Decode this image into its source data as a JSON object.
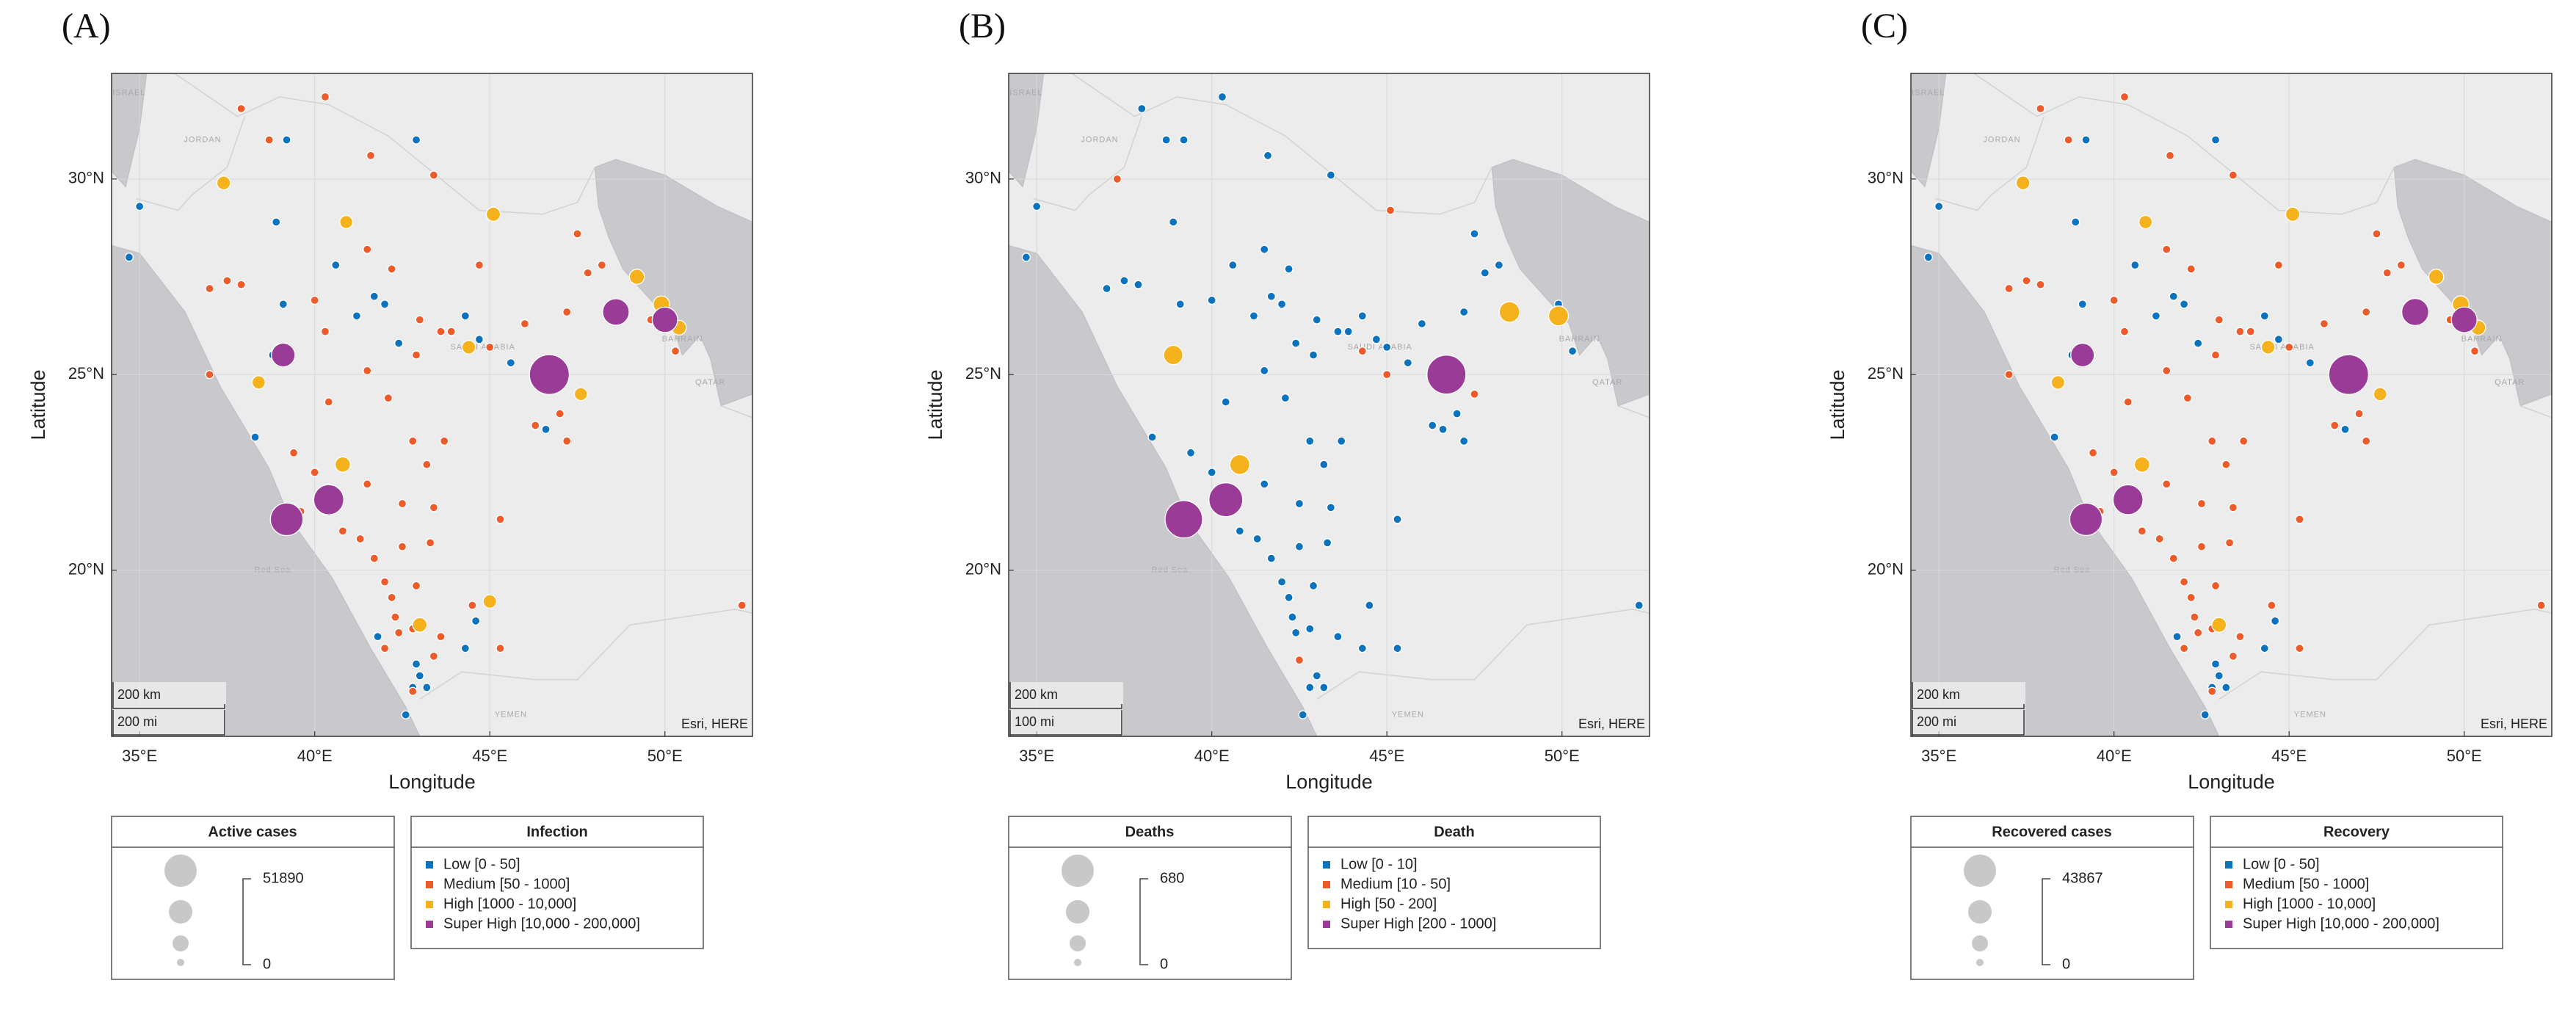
{
  "chart_data": [
    {
      "type": "scatter",
      "panel_label": "(A)",
      "xlabel": "Longitude",
      "ylabel": "Latitude",
      "xlim": [
        34.2,
        52.5
      ],
      "ylim": [
        15.75,
        32.7
      ],
      "xticks": [
        {
          "value": 35,
          "label": "35°E"
        },
        {
          "value": 40,
          "label": "40°E"
        },
        {
          "value": 45,
          "label": "45°E"
        },
        {
          "value": 50,
          "label": "50°E"
        }
      ],
      "yticks": [
        {
          "value": 20,
          "label": "20°N"
        },
        {
          "value": 25,
          "label": "25°N"
        },
        {
          "value": 30,
          "label": "30°N"
        }
      ],
      "grid": true,
      "map_labels": [
        "ISRAEL",
        "JORDAN",
        "SAUDI ARABIA",
        "BAHRAIN",
        "QATAR",
        "Red Sea",
        "YEMEN"
      ],
      "scale_bar": [
        "200 km",
        "200 mi"
      ],
      "attribution": "Esri, HERE",
      "size_legend": {
        "title": "Active cases",
        "max": 51890,
        "min": 0
      },
      "legend_title": "Infection",
      "series": [
        {
          "name": "Low [0 - 50]",
          "color": "#0b72bd",
          "x": [
            35.0,
            34.7,
            39.2,
            38.9,
            39.1,
            38.3,
            40.6,
            41.7,
            41.2,
            42.0,
            42.4,
            44.3,
            44.7,
            45.6,
            46.6,
            42.9,
            41.8,
            42.9,
            43.0,
            42.8,
            43.2,
            42.6,
            44.6,
            44.3,
            38.8
          ],
          "y": [
            29.3,
            28.0,
            31.0,
            28.9,
            26.8,
            23.4,
            27.8,
            27.0,
            26.5,
            26.8,
            25.8,
            26.5,
            25.9,
            25.3,
            23.6,
            31.0,
            18.3,
            17.6,
            17.3,
            17.0,
            17.0,
            16.3,
            18.7,
            18.0,
            25.5
          ]
        },
        {
          "name": "Medium [50 - 1000]",
          "color": "#ee5b2a",
          "x": [
            37.9,
            38.7,
            40.3,
            41.6,
            43.4,
            37.0,
            37.5,
            37.9,
            40.0,
            40.3,
            41.5,
            42.2,
            43.0,
            43.6,
            43.9,
            42.9,
            45.0,
            44.7,
            47.2,
            47.5,
            47.8,
            48.2,
            46.0,
            46.3,
            47.0,
            47.2,
            37.0,
            39.4,
            40.0,
            40.4,
            41.5,
            42.1,
            42.8,
            43.7,
            43.2,
            41.5,
            42.5,
            43.4,
            45.3,
            40.8,
            41.3,
            42.5,
            43.3,
            41.7,
            42.0,
            42.2,
            42.3,
            42.4,
            42.8,
            43.6,
            42.9,
            44.5,
            45.3,
            42.0,
            43.4,
            42.8,
            50.3,
            49.6,
            52.2,
            39.6
          ],
          "y": [
            31.8,
            31.0,
            32.1,
            30.6,
            30.1,
            27.2,
            27.4,
            27.3,
            26.9,
            26.1,
            28.2,
            27.7,
            26.4,
            26.1,
            26.1,
            25.5,
            25.7,
            27.8,
            26.6,
            28.6,
            27.6,
            27.8,
            26.3,
            23.7,
            24.0,
            23.3,
            25.0,
            23.0,
            22.5,
            24.3,
            25.1,
            24.4,
            23.3,
            23.3,
            22.7,
            22.2,
            21.7,
            21.6,
            21.3,
            21.0,
            20.8,
            20.6,
            20.7,
            20.3,
            19.7,
            19.3,
            18.8,
            18.4,
            18.5,
            18.3,
            19.6,
            19.1,
            18.0,
            18.0,
            17.8,
            16.9,
            25.6,
            26.4,
            19.1,
            21.5
          ]
        },
        {
          "name": "High [1000 - 10,000]",
          "color": "#f5b21c",
          "x": [
            37.4,
            40.9,
            45.1,
            38.4,
            40.8,
            43.0,
            45.0,
            46.5,
            47.6,
            49.2,
            49.9,
            50.4,
            44.4
          ],
          "y": [
            29.9,
            28.9,
            29.1,
            24.8,
            22.7,
            18.6,
            19.2,
            25.0,
            24.5,
            27.5,
            26.8,
            26.2,
            25.7
          ],
          "sizes": [
            1500,
            1200,
            1800,
            1300,
            2600,
            2000,
            1400,
            1600,
            1200,
            2400,
            3500,
            2200,
            1500
          ]
        },
        {
          "name": "Super High [10,000 - 200,000]",
          "color": "#9a3b98",
          "x": [
            39.1,
            40.4,
            39.2,
            46.7,
            48.6,
            50.0
          ],
          "y": [
            25.5,
            21.8,
            21.3,
            25.0,
            26.6,
            26.4
          ],
          "sizes": [
            12000,
            24000,
            30000,
            50000,
            17000,
            15000
          ]
        }
      ]
    },
    {
      "type": "scatter",
      "panel_label": "(B)",
      "xlabel": "Longitude",
      "ylabel": "Latitude",
      "xlim": [
        34.2,
        52.5
      ],
      "ylim": [
        15.75,
        32.7
      ],
      "xticks": [
        {
          "value": 35,
          "label": "35°E"
        },
        {
          "value": 40,
          "label": "40°E"
        },
        {
          "value": 45,
          "label": "45°E"
        },
        {
          "value": 50,
          "label": "50°E"
        }
      ],
      "yticks": [
        {
          "value": 20,
          "label": "20°N"
        },
        {
          "value": 25,
          "label": "25°N"
        },
        {
          "value": 30,
          "label": "30°N"
        }
      ],
      "grid": true,
      "map_labels": [
        "ISRAEL",
        "JORDAN",
        "SAUDI ARABIA",
        "BAHRAIN",
        "QATAR",
        "Red Sea",
        "YEMEN"
      ],
      "scale_bar": [
        "200 km",
        "100 mi"
      ],
      "attribution": "Esri, HERE",
      "size_legend": {
        "title": "Deaths",
        "max": 680,
        "min": 0
      },
      "legend_title": "Death",
      "series": [
        {
          "name": "Low [0 - 10]",
          "color": "#0b72bd",
          "x": [
            35.0,
            34.7,
            38.0,
            38.7,
            39.2,
            40.3,
            41.6,
            43.4,
            39.1,
            38.9,
            37.0,
            37.5,
            37.9,
            40.0,
            40.6,
            41.7,
            41.2,
            42.0,
            42.4,
            41.5,
            42.2,
            43.0,
            43.6,
            43.9,
            42.9,
            44.3,
            44.7,
            45.0,
            45.6,
            46.0,
            46.6,
            47.2,
            47.5,
            47.8,
            48.2,
            46.3,
            47.0,
            47.2,
            38.3,
            39.4,
            40.0,
            40.4,
            41.5,
            42.1,
            42.8,
            43.7,
            43.2,
            41.5,
            42.5,
            43.4,
            45.3,
            40.8,
            41.3,
            42.5,
            43.3,
            41.7,
            42.0,
            42.2,
            42.3,
            42.4,
            42.8,
            43.6,
            42.9,
            44.5,
            45.3,
            43.0,
            42.8,
            43.2,
            42.6,
            44.3,
            49.9,
            50.3,
            52.2
          ],
          "y": [
            29.3,
            28.0,
            31.8,
            31.0,
            31.0,
            32.1,
            30.6,
            30.1,
            26.8,
            28.9,
            27.2,
            27.4,
            27.3,
            26.9,
            27.8,
            27.0,
            26.5,
            26.8,
            25.8,
            28.2,
            27.7,
            26.4,
            26.1,
            26.1,
            25.5,
            26.5,
            25.9,
            25.7,
            25.3,
            26.3,
            23.6,
            26.6,
            28.6,
            27.6,
            27.8,
            23.7,
            24.0,
            23.3,
            23.4,
            23.0,
            22.5,
            24.3,
            25.1,
            24.4,
            23.3,
            23.3,
            22.7,
            22.2,
            21.7,
            21.6,
            21.3,
            21.0,
            20.8,
            20.6,
            20.7,
            20.3,
            19.7,
            19.3,
            18.8,
            18.4,
            18.5,
            18.3,
            19.6,
            19.1,
            18.0,
            17.3,
            17.0,
            17.0,
            16.3,
            18.0,
            26.8,
            25.6,
            19.1
          ]
        },
        {
          "name": "Medium [10 - 50]",
          "color": "#ee5b2a",
          "x": [
            37.3,
            45.1,
            44.3,
            47.5,
            42.5,
            45.0
          ],
          "y": [
            30.0,
            29.2,
            25.6,
            24.5,
            17.7,
            25.0
          ]
        },
        {
          "name": "High [50 - 200]",
          "color": "#f5b21c",
          "x": [
            38.9,
            40.8,
            48.5,
            49.9
          ],
          "y": [
            25.5,
            22.7,
            26.6,
            26.5
          ],
          "sizes": [
            80,
            90,
            100,
            90
          ]
        },
        {
          "name": "Super High [200 - 1000]",
          "color": "#9a3b98",
          "x": [
            39.2,
            40.4,
            46.7
          ],
          "y": [
            21.3,
            21.8,
            25.0
          ],
          "sizes": [
            560,
            430,
            620
          ]
        }
      ]
    },
    {
      "type": "scatter",
      "panel_label": "(C)",
      "xlabel": "Longitude",
      "ylabel": "Latitude",
      "xlim": [
        34.2,
        52.5
      ],
      "ylim": [
        15.75,
        32.7
      ],
      "xticks": [
        {
          "value": 35,
          "label": "35°E"
        },
        {
          "value": 40,
          "label": "40°E"
        },
        {
          "value": 45,
          "label": "45°E"
        },
        {
          "value": 50,
          "label": "50°E"
        }
      ],
      "yticks": [
        {
          "value": 20,
          "label": "20°N"
        },
        {
          "value": 25,
          "label": "25°N"
        },
        {
          "value": 30,
          "label": "30°N"
        }
      ],
      "grid": true,
      "map_labels": [
        "ISRAEL",
        "JORDAN",
        "SAUDI ARABIA",
        "BAHRAIN",
        "QATAR",
        "Red Sea",
        "YEMEN"
      ],
      "scale_bar": [
        "200 km",
        "200 mi"
      ],
      "attribution": "Esri, HERE",
      "size_legend": {
        "title": "Recovered cases",
        "max": 43867,
        "min": 0
      },
      "legend_title": "Recovery",
      "series": [
        {
          "name": "Low [0 - 50]",
          "color": "#0b72bd",
          "x": [
            35.0,
            34.7,
            39.2,
            38.9,
            39.1,
            38.3,
            40.6,
            41.7,
            41.2,
            42.0,
            42.4,
            44.3,
            44.7,
            45.6,
            46.6,
            42.9,
            41.8,
            42.9,
            43.0,
            42.8,
            43.2,
            42.6,
            44.6,
            44.3,
            38.8
          ],
          "y": [
            29.3,
            28.0,
            31.0,
            28.9,
            26.8,
            23.4,
            27.8,
            27.0,
            26.5,
            26.8,
            25.8,
            26.5,
            25.9,
            25.3,
            23.6,
            31.0,
            18.3,
            17.6,
            17.3,
            17.0,
            17.0,
            16.3,
            18.7,
            18.0,
            25.5
          ]
        },
        {
          "name": "Medium [50 - 1000]",
          "color": "#ee5b2a",
          "x": [
            37.9,
            38.7,
            40.3,
            41.6,
            43.4,
            37.0,
            37.5,
            37.9,
            40.0,
            40.3,
            41.5,
            42.2,
            43.0,
            43.6,
            43.9,
            42.9,
            45.0,
            44.7,
            47.2,
            47.5,
            47.8,
            48.2,
            46.0,
            46.3,
            47.0,
            47.2,
            37.0,
            39.4,
            40.0,
            40.4,
            41.5,
            42.1,
            42.8,
            43.7,
            43.2,
            41.5,
            42.5,
            43.4,
            45.3,
            40.8,
            41.3,
            42.5,
            43.3,
            41.7,
            42.0,
            42.2,
            42.3,
            42.4,
            42.8,
            43.6,
            42.9,
            44.5,
            45.3,
            42.0,
            43.4,
            42.8,
            50.3,
            49.6,
            52.2,
            39.6
          ],
          "y": [
            31.8,
            31.0,
            32.1,
            30.6,
            30.1,
            27.2,
            27.4,
            27.3,
            26.9,
            26.1,
            28.2,
            27.7,
            26.4,
            26.1,
            26.1,
            25.5,
            25.7,
            27.8,
            26.6,
            28.6,
            27.6,
            27.8,
            26.3,
            23.7,
            24.0,
            23.3,
            25.0,
            23.0,
            22.5,
            24.3,
            25.1,
            24.4,
            23.3,
            23.3,
            22.7,
            22.2,
            21.7,
            21.6,
            21.3,
            21.0,
            20.8,
            20.6,
            20.7,
            20.3,
            19.7,
            19.3,
            18.8,
            18.4,
            18.5,
            18.3,
            19.6,
            19.1,
            18.0,
            18.0,
            17.8,
            16.9,
            25.6,
            26.4,
            19.1,
            21.5
          ]
        },
        {
          "name": "High [1000 - 10,000]",
          "color": "#f5b21c",
          "x": [
            37.4,
            40.9,
            45.1,
            38.4,
            40.8,
            43.0,
            46.5,
            47.6,
            49.2,
            49.9,
            50.4,
            44.4
          ],
          "y": [
            29.9,
            28.9,
            29.1,
            24.8,
            22.7,
            18.6,
            25.0,
            24.5,
            27.5,
            26.8,
            26.2,
            25.7
          ],
          "sizes": [
            1300,
            1100,
            1500,
            1200,
            2200,
            1800,
            1400,
            1100,
            2000,
            3000,
            1900,
            1300
          ]
        },
        {
          "name": "Super High [10,000 - 200,000]",
          "color": "#9a3b98",
          "x": [
            39.1,
            40.4,
            39.2,
            46.7,
            48.6,
            50.0
          ],
          "y": [
            25.5,
            21.8,
            21.3,
            25.0,
            26.6,
            26.4
          ],
          "sizes": [
            10000,
            20000,
            25000,
            42000,
            15000,
            13000
          ]
        }
      ]
    }
  ]
}
